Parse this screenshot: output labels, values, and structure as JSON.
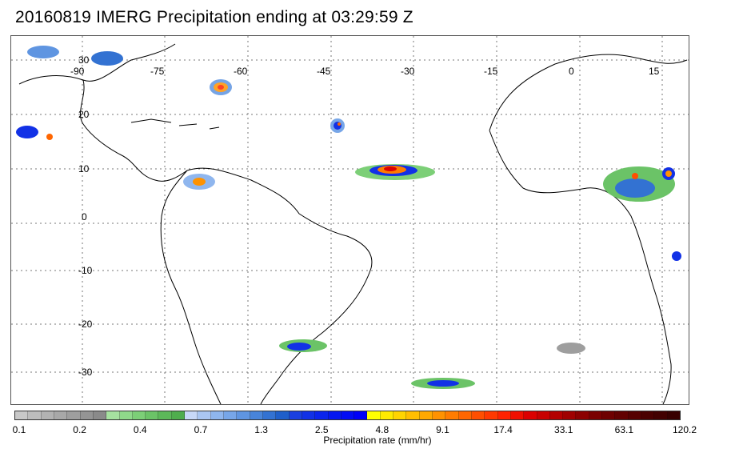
{
  "title": "20160819 IMERG Precipitation ending at 03:29:59 Z",
  "map": {
    "lon_labels": [
      "-90",
      "-75",
      "-60",
      "-45",
      "-30",
      "-15",
      "0",
      "15"
    ],
    "lat_labels": [
      "30",
      "20",
      "10",
      "0",
      "-10",
      "-20",
      "-30"
    ]
  },
  "colorbar": {
    "label": "Precipitation rate (mm/hr)",
    "ticks": [
      "0.1",
      "0.2",
      "0.4",
      "0.7",
      "1.3",
      "2.5",
      "4.8",
      "9.1",
      "17.4",
      "33.1",
      "63.1",
      "120.2"
    ],
    "colors": [
      "#c8c8c8",
      "#bdbdbd",
      "#b2b2b2",
      "#a8a8a8",
      "#9e9e9e",
      "#949494",
      "#8a8a8a",
      "#a6e2a0",
      "#8fd98a",
      "#7ccf77",
      "#6bc367",
      "#5cb859",
      "#4fad4d",
      "#c8d8f8",
      "#aac6f3",
      "#8fb6ee",
      "#77a6e8",
      "#5f95e1",
      "#4884da",
      "#3372d2",
      "#1f5fca",
      "#1a3fe0",
      "#1231e6",
      "#0b24ec",
      "#0517f0",
      "#020cf4",
      "#0000f8",
      "#ffff00",
      "#ffea00",
      "#ffd400",
      "#ffbe00",
      "#ffa800",
      "#ff9200",
      "#ff7c00",
      "#ff6600",
      "#ff4f00",
      "#ff3900",
      "#ff2200",
      "#f01000",
      "#dc0000",
      "#c80000",
      "#b40000",
      "#a00000",
      "#8c0000",
      "#7a0000",
      "#6e0000",
      "#620000",
      "#560000",
      "#4a0000",
      "#420000",
      "#380000"
    ]
  }
}
